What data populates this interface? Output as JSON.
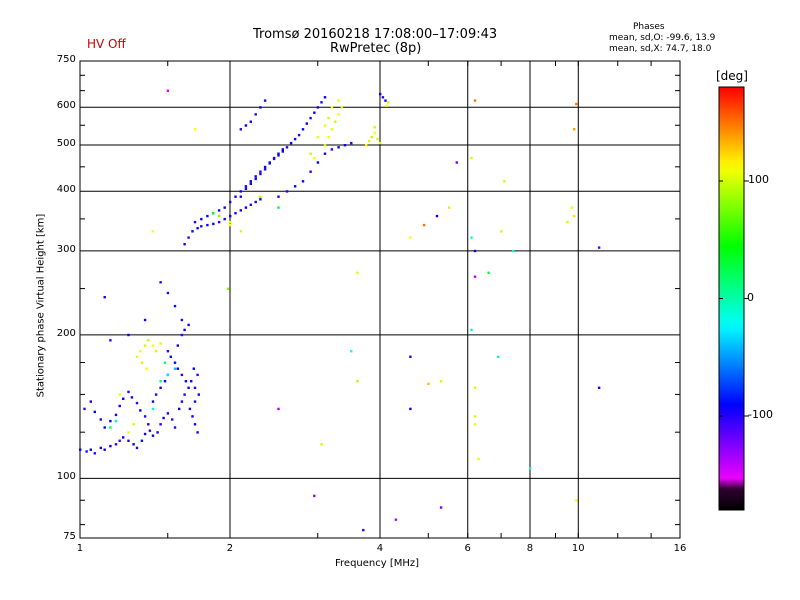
{
  "status": {
    "hv_label": "HV Off",
    "hv_color": "#cc0000"
  },
  "header": {
    "title_line1": "Tromsø 20160218 17:08:00–17:09:43",
    "title_line2": "RwPretec (8p)"
  },
  "phase_info": {
    "heading": "Phases",
    "o_line": "mean, sd,O: -99.6, 13.9",
    "x_line": "mean, sd,X:  74.7, 18.0"
  },
  "colorbar": {
    "unit": "[deg]",
    "ticks": [
      "100",
      "0",
      "-100"
    ]
  },
  "chart_data": {
    "type": "scatter",
    "title": "Tromsø 20160218 17:08:00–17:09:43",
    "subtitle": "RwPretec (8p)",
    "xlabel": "Frequency [MHz]",
    "ylabel": "Stationary phase Virtual Height [km]",
    "x_scale": "log",
    "y_scale": "log",
    "xlim": [
      1,
      16
    ],
    "ylim": [
      75,
      750
    ],
    "x_ticks": [
      "1",
      "2",
      "4",
      "6",
      "8",
      "10",
      "16"
    ],
    "y_ticks": [
      "750",
      "600",
      "500",
      "400",
      "300",
      "200",
      "100",
      "75"
    ],
    "grid": true,
    "color_scale": {
      "label": "[deg]",
      "min": -180,
      "max": 180,
      "ticks": [
        100,
        0,
        -100
      ]
    },
    "series": [
      {
        "points": [
          [
            1.0,
            115,
            -95
          ],
          [
            1.03,
            114,
            -100
          ],
          [
            1.05,
            115,
            -90
          ],
          [
            1.07,
            113,
            -105
          ],
          [
            1.1,
            116,
            -100
          ],
          [
            1.12,
            115,
            -95
          ],
          [
            1.15,
            117,
            -90
          ],
          [
            1.18,
            118,
            -100
          ],
          [
            1.2,
            120,
            -110
          ],
          [
            1.22,
            122,
            -95
          ],
          [
            1.25,
            120,
            -100
          ],
          [
            1.28,
            118,
            -90
          ],
          [
            1.3,
            116,
            -100
          ],
          [
            1.33,
            120,
            -85
          ],
          [
            1.35,
            124,
            -95
          ],
          [
            1.38,
            126,
            -100
          ],
          [
            1.4,
            123,
            -90
          ],
          [
            1.43,
            125,
            -95
          ],
          [
            1.45,
            130,
            -100
          ],
          [
            1.47,
            134,
            -90
          ],
          [
            1.5,
            137,
            -95
          ],
          [
            1.53,
            133,
            -105
          ],
          [
            1.55,
            128,
            -100
          ],
          [
            1.58,
            140,
            -90
          ],
          [
            1.6,
            145,
            -95
          ],
          [
            1.62,
            150,
            -100
          ],
          [
            1.65,
            155,
            -95
          ],
          [
            1.63,
            160,
            -90
          ],
          [
            1.6,
            165,
            -100
          ],
          [
            1.57,
            170,
            -95
          ],
          [
            1.55,
            175,
            -90
          ],
          [
            1.52,
            180,
            -100
          ],
          [
            1.5,
            185,
            -105
          ],
          [
            1.02,
            140,
            -100
          ],
          [
            1.05,
            145,
            -95
          ],
          [
            1.07,
            138,
            -90
          ],
          [
            1.1,
            133,
            -100
          ],
          [
            1.12,
            128,
            -95
          ],
          [
            1.15,
            132,
            -90
          ],
          [
            1.18,
            136,
            -100
          ],
          [
            1.2,
            142,
            -95
          ],
          [
            1.22,
            147,
            -90
          ],
          [
            1.25,
            152,
            -100
          ],
          [
            1.27,
            148,
            -95
          ],
          [
            1.3,
            144,
            -105
          ],
          [
            1.32,
            139,
            -90
          ],
          [
            1.35,
            135,
            -100
          ],
          [
            1.37,
            130,
            -95
          ],
          [
            1.4,
            145,
            -90
          ],
          [
            1.42,
            150,
            -100
          ],
          [
            1.45,
            155,
            -95
          ],
          [
            1.48,
            160,
            -90
          ],
          [
            1.5,
            165,
            -100
          ],
          [
            1.3,
            180,
            105
          ],
          [
            1.32,
            185,
            110
          ],
          [
            1.35,
            190,
            100
          ],
          [
            1.37,
            195,
            95
          ],
          [
            1.4,
            190,
            110
          ],
          [
            1.42,
            185,
            100
          ],
          [
            1.45,
            192,
            105
          ],
          [
            1.33,
            175,
            120
          ],
          [
            1.36,
            170,
            115
          ],
          [
            1.2,
            150,
            110
          ],
          [
            1.25,
            125,
            105
          ],
          [
            1.28,
            130,
            100
          ],
          [
            1.15,
            128,
            20
          ],
          [
            1.18,
            132,
            0
          ],
          [
            1.4,
            140,
            -10
          ],
          [
            1.45,
            160,
            15
          ],
          [
            1.5,
            165,
            -30
          ],
          [
            1.55,
            170,
            -40
          ],
          [
            1.48,
            175,
            10
          ],
          [
            1.57,
            190,
            -95
          ],
          [
            1.6,
            200,
            -100
          ],
          [
            1.62,
            205,
            -90
          ],
          [
            1.65,
            210,
            -95
          ],
          [
            1.6,
            215,
            -100
          ],
          [
            1.55,
            230,
            -95
          ],
          [
            1.5,
            245,
            -105
          ],
          [
            1.45,
            258,
            -100
          ],
          [
            1.35,
            215,
            -95
          ],
          [
            1.25,
            200,
            -90
          ],
          [
            1.15,
            195,
            -100
          ],
          [
            1.12,
            240,
            -95
          ],
          [
            1.72,
            125,
            -100
          ],
          [
            1.7,
            130,
            -95
          ],
          [
            1.68,
            135,
            -90
          ],
          [
            1.66,
            140,
            -100
          ],
          [
            1.7,
            145,
            -95
          ],
          [
            1.73,
            150,
            -90
          ],
          [
            1.7,
            155,
            -100
          ],
          [
            1.67,
            160,
            -95
          ],
          [
            1.72,
            165,
            -100
          ],
          [
            1.69,
            170,
            -90
          ],
          [
            1.62,
            310,
            -95
          ],
          [
            1.65,
            320,
            -100
          ],
          [
            1.68,
            330,
            -90
          ],
          [
            1.72,
            335,
            -95
          ],
          [
            1.75,
            338,
            -100
          ],
          [
            1.8,
            340,
            -90
          ],
          [
            1.85,
            342,
            -95
          ],
          [
            1.9,
            345,
            -100
          ],
          [
            1.95,
            350,
            -95
          ],
          [
            2.0,
            355,
            -90
          ],
          [
            2.05,
            360,
            -100
          ],
          [
            2.1,
            365,
            -95
          ],
          [
            2.15,
            370,
            -90
          ],
          [
            2.2,
            375,
            -100
          ],
          [
            2.25,
            380,
            -95
          ],
          [
            2.3,
            385,
            -90
          ],
          [
            1.7,
            345,
            -100
          ],
          [
            1.75,
            350,
            -95
          ],
          [
            1.8,
            355,
            -90
          ],
          [
            1.85,
            360,
            -100
          ],
          [
            1.9,
            365,
            -95
          ],
          [
            1.95,
            370,
            -90
          ],
          [
            2.0,
            380,
            -100
          ],
          [
            2.05,
            390,
            -95
          ],
          [
            2.1,
            400,
            -90
          ],
          [
            2.15,
            410,
            -100
          ],
          [
            2.2,
            420,
            -95
          ],
          [
            2.25,
            430,
            -90
          ],
          [
            2.3,
            440,
            -100
          ],
          [
            2.35,
            450,
            -95
          ],
          [
            2.4,
            460,
            -90
          ],
          [
            2.45,
            470,
            -100
          ],
          [
            2.5,
            480,
            -95
          ],
          [
            2.55,
            490,
            -90
          ],
          [
            2.1,
            390,
            -95
          ],
          [
            2.15,
            405,
            -100
          ],
          [
            2.2,
            415,
            -90
          ],
          [
            2.25,
            425,
            -95
          ],
          [
            2.3,
            435,
            -100
          ],
          [
            2.35,
            445,
            -90
          ],
          [
            2.4,
            458,
            -95
          ],
          [
            2.45,
            468,
            -100
          ],
          [
            2.5,
            476,
            -90
          ],
          [
            2.55,
            485,
            -95
          ],
          [
            2.6,
            495,
            -100
          ],
          [
            2.65,
            505,
            -90
          ],
          [
            2.7,
            515,
            -95
          ],
          [
            2.75,
            525,
            -100
          ],
          [
            2.8,
            540,
            -90
          ],
          [
            2.85,
            555,
            -95
          ],
          [
            2.9,
            570,
            -100
          ],
          [
            2.95,
            585,
            -90
          ],
          [
            3.0,
            600,
            -95
          ],
          [
            3.05,
            615,
            -100
          ],
          [
            3.1,
            630,
            -90
          ],
          [
            2.2,
            560,
            -95
          ],
          [
            2.25,
            580,
            -100
          ],
          [
            2.3,
            600,
            -90
          ],
          [
            2.35,
            620,
            -95
          ],
          [
            2.1,
            540,
            -100
          ],
          [
            2.15,
            550,
            -90
          ],
          [
            2.5,
            390,
            -95
          ],
          [
            2.6,
            400,
            -100
          ],
          [
            2.7,
            410,
            -90
          ],
          [
            2.8,
            420,
            -95
          ],
          [
            2.9,
            440,
            -100
          ],
          [
            3.0,
            460,
            -90
          ],
          [
            3.1,
            480,
            -95
          ],
          [
            3.2,
            490,
            -100
          ],
          [
            3.3,
            495,
            -90
          ],
          [
            3.4,
            500,
            -95
          ],
          [
            3.5,
            505,
            -100
          ],
          [
            3.1,
            500,
            100
          ],
          [
            3.15,
            520,
            110
          ],
          [
            3.2,
            540,
            105
          ],
          [
            3.25,
            560,
            95
          ],
          [
            3.3,
            580,
            110
          ],
          [
            3.35,
            600,
            100
          ],
          [
            3.3,
            620,
            105
          ],
          [
            3.2,
            600,
            110
          ],
          [
            3.15,
            570,
            100
          ],
          [
            3.1,
            550,
            105
          ],
          [
            2.9,
            480,
            95
          ],
          [
            2.95,
            470,
            110
          ],
          [
            3.0,
            520,
            105
          ],
          [
            3.8,
            510,
            100
          ],
          [
            3.85,
            520,
            95
          ],
          [
            3.9,
            530,
            110
          ],
          [
            3.95,
            515,
            100
          ],
          [
            4.0,
            505,
            105
          ],
          [
            3.75,
            500,
            110
          ],
          [
            3.9,
            545,
            95
          ],
          [
            1.9,
            355,
            80
          ],
          [
            2.0,
            340,
            110
          ],
          [
            2.1,
            330,
            100
          ],
          [
            1.85,
            360,
            40
          ],
          [
            2.3,
            390,
            90
          ],
          [
            2.5,
            370,
            30
          ],
          [
            4.0,
            640,
            -95
          ],
          [
            4.05,
            630,
            -100
          ],
          [
            4.1,
            620,
            -90
          ],
          [
            4.12,
            605,
            110
          ],
          [
            4.15,
            615,
            100
          ],
          [
            1.5,
            650,
            -150
          ],
          [
            1.7,
            540,
            110
          ],
          [
            1.4,
            330,
            110
          ],
          [
            1.98,
            250,
            80
          ],
          [
            2.0,
            345,
            105
          ],
          [
            3.6,
            270,
            105
          ],
          [
            3.5,
            185,
            -20
          ],
          [
            3.6,
            160,
            90
          ],
          [
            2.5,
            140,
            -140
          ],
          [
            2.95,
            92,
            -130
          ],
          [
            3.05,
            118,
            100
          ],
          [
            3.7,
            78,
            -100
          ],
          [
            4.3,
            82,
            -140
          ],
          [
            4.6,
            180,
            -100
          ],
          [
            4.6,
            140,
            -90
          ],
          [
            5.0,
            158,
            130
          ],
          [
            5.3,
            160,
            100
          ],
          [
            5.3,
            87,
            -120
          ],
          [
            4.6,
            320,
            110
          ],
          [
            4.9,
            340,
            150
          ],
          [
            5.2,
            355,
            -95
          ],
          [
            5.5,
            370,
            120
          ],
          [
            5.7,
            460,
            -120
          ],
          [
            6.2,
            620,
            150
          ],
          [
            6.1,
            470,
            100
          ],
          [
            6.2,
            300,
            -90
          ],
          [
            6.2,
            265,
            -140
          ],
          [
            6.1,
            320,
            -10
          ],
          [
            6.1,
            205,
            -10
          ],
          [
            6.2,
            135,
            100
          ],
          [
            6.2,
            130,
            110
          ],
          [
            6.2,
            155,
            100
          ],
          [
            6.3,
            110,
            105
          ],
          [
            6.6,
            270,
            30
          ],
          [
            6.9,
            180,
            -10
          ],
          [
            7.0,
            330,
            100
          ],
          [
            7.1,
            420,
            100
          ],
          [
            7.4,
            300,
            -10
          ],
          [
            8.0,
            105,
            -10
          ],
          [
            9.5,
            345,
            100
          ],
          [
            9.7,
            370,
            110
          ],
          [
            9.8,
            355,
            120
          ],
          [
            9.8,
            540,
            140
          ],
          [
            9.9,
            610,
            150
          ],
          [
            9.9,
            90,
            110
          ],
          [
            11.0,
            305,
            -110
          ],
          [
            11.0,
            155,
            -100
          ]
        ]
      }
    ]
  }
}
